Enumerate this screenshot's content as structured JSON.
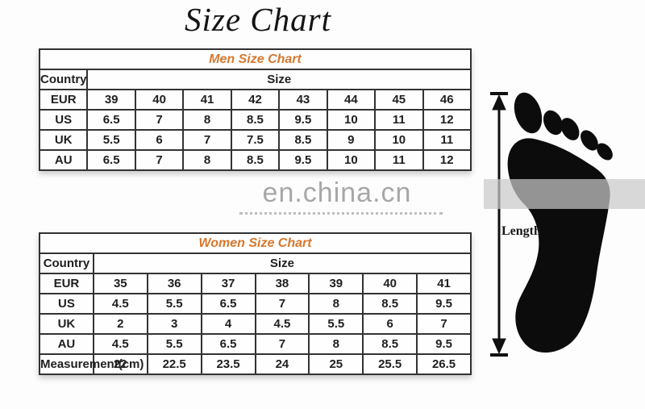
{
  "page_title": "Size Chart",
  "watermark": {
    "text": "en.china.cn"
  },
  "figure": {
    "length_label": "Length",
    "icon": "footprint-icon"
  },
  "colors": {
    "accent_orange": "#d6782e",
    "table_border": "#333333",
    "text": "#1f1f1f",
    "watermark_gray": "#9c9c9c"
  },
  "chart_data": [
    {
      "type": "table",
      "title": "Men Size Chart",
      "header": {
        "country": "Country",
        "size": "Size"
      },
      "rows": [
        {
          "label": "EUR",
          "values": [
            "39",
            "40",
            "41",
            "42",
            "43",
            "44",
            "45",
            "46"
          ]
        },
        {
          "label": "US",
          "values": [
            "6.5",
            "7",
            "8",
            "8.5",
            "9.5",
            "10",
            "11",
            "12"
          ]
        },
        {
          "label": "UK",
          "values": [
            "5.5",
            "6",
            "7",
            "7.5",
            "8.5",
            "9",
            "10",
            "11"
          ]
        },
        {
          "label": "AU",
          "values": [
            "6.5",
            "7",
            "8",
            "8.5",
            "9.5",
            "10",
            "11",
            "12"
          ]
        }
      ]
    },
    {
      "type": "table",
      "title": "Women Size Chart",
      "header": {
        "country": "Country",
        "size": "Size"
      },
      "rows": [
        {
          "label": "EUR",
          "values": [
            "35",
            "36",
            "37",
            "38",
            "39",
            "40",
            "41"
          ]
        },
        {
          "label": "US",
          "values": [
            "4.5",
            "5.5",
            "6.5",
            "7",
            "8",
            "8.5",
            "9.5"
          ]
        },
        {
          "label": "UK",
          "values": [
            "2",
            "3",
            "4",
            "4.5",
            "5.5",
            "6",
            "7"
          ]
        },
        {
          "label": "AU",
          "values": [
            "4.5",
            "5.5",
            "6.5",
            "7",
            "8",
            "8.5",
            "9.5"
          ]
        },
        {
          "label": "Measurement(cm)",
          "values": [
            "22",
            "22.5",
            "23.5",
            "24",
            "25",
            "25.5",
            "26.5"
          ]
        }
      ]
    }
  ]
}
